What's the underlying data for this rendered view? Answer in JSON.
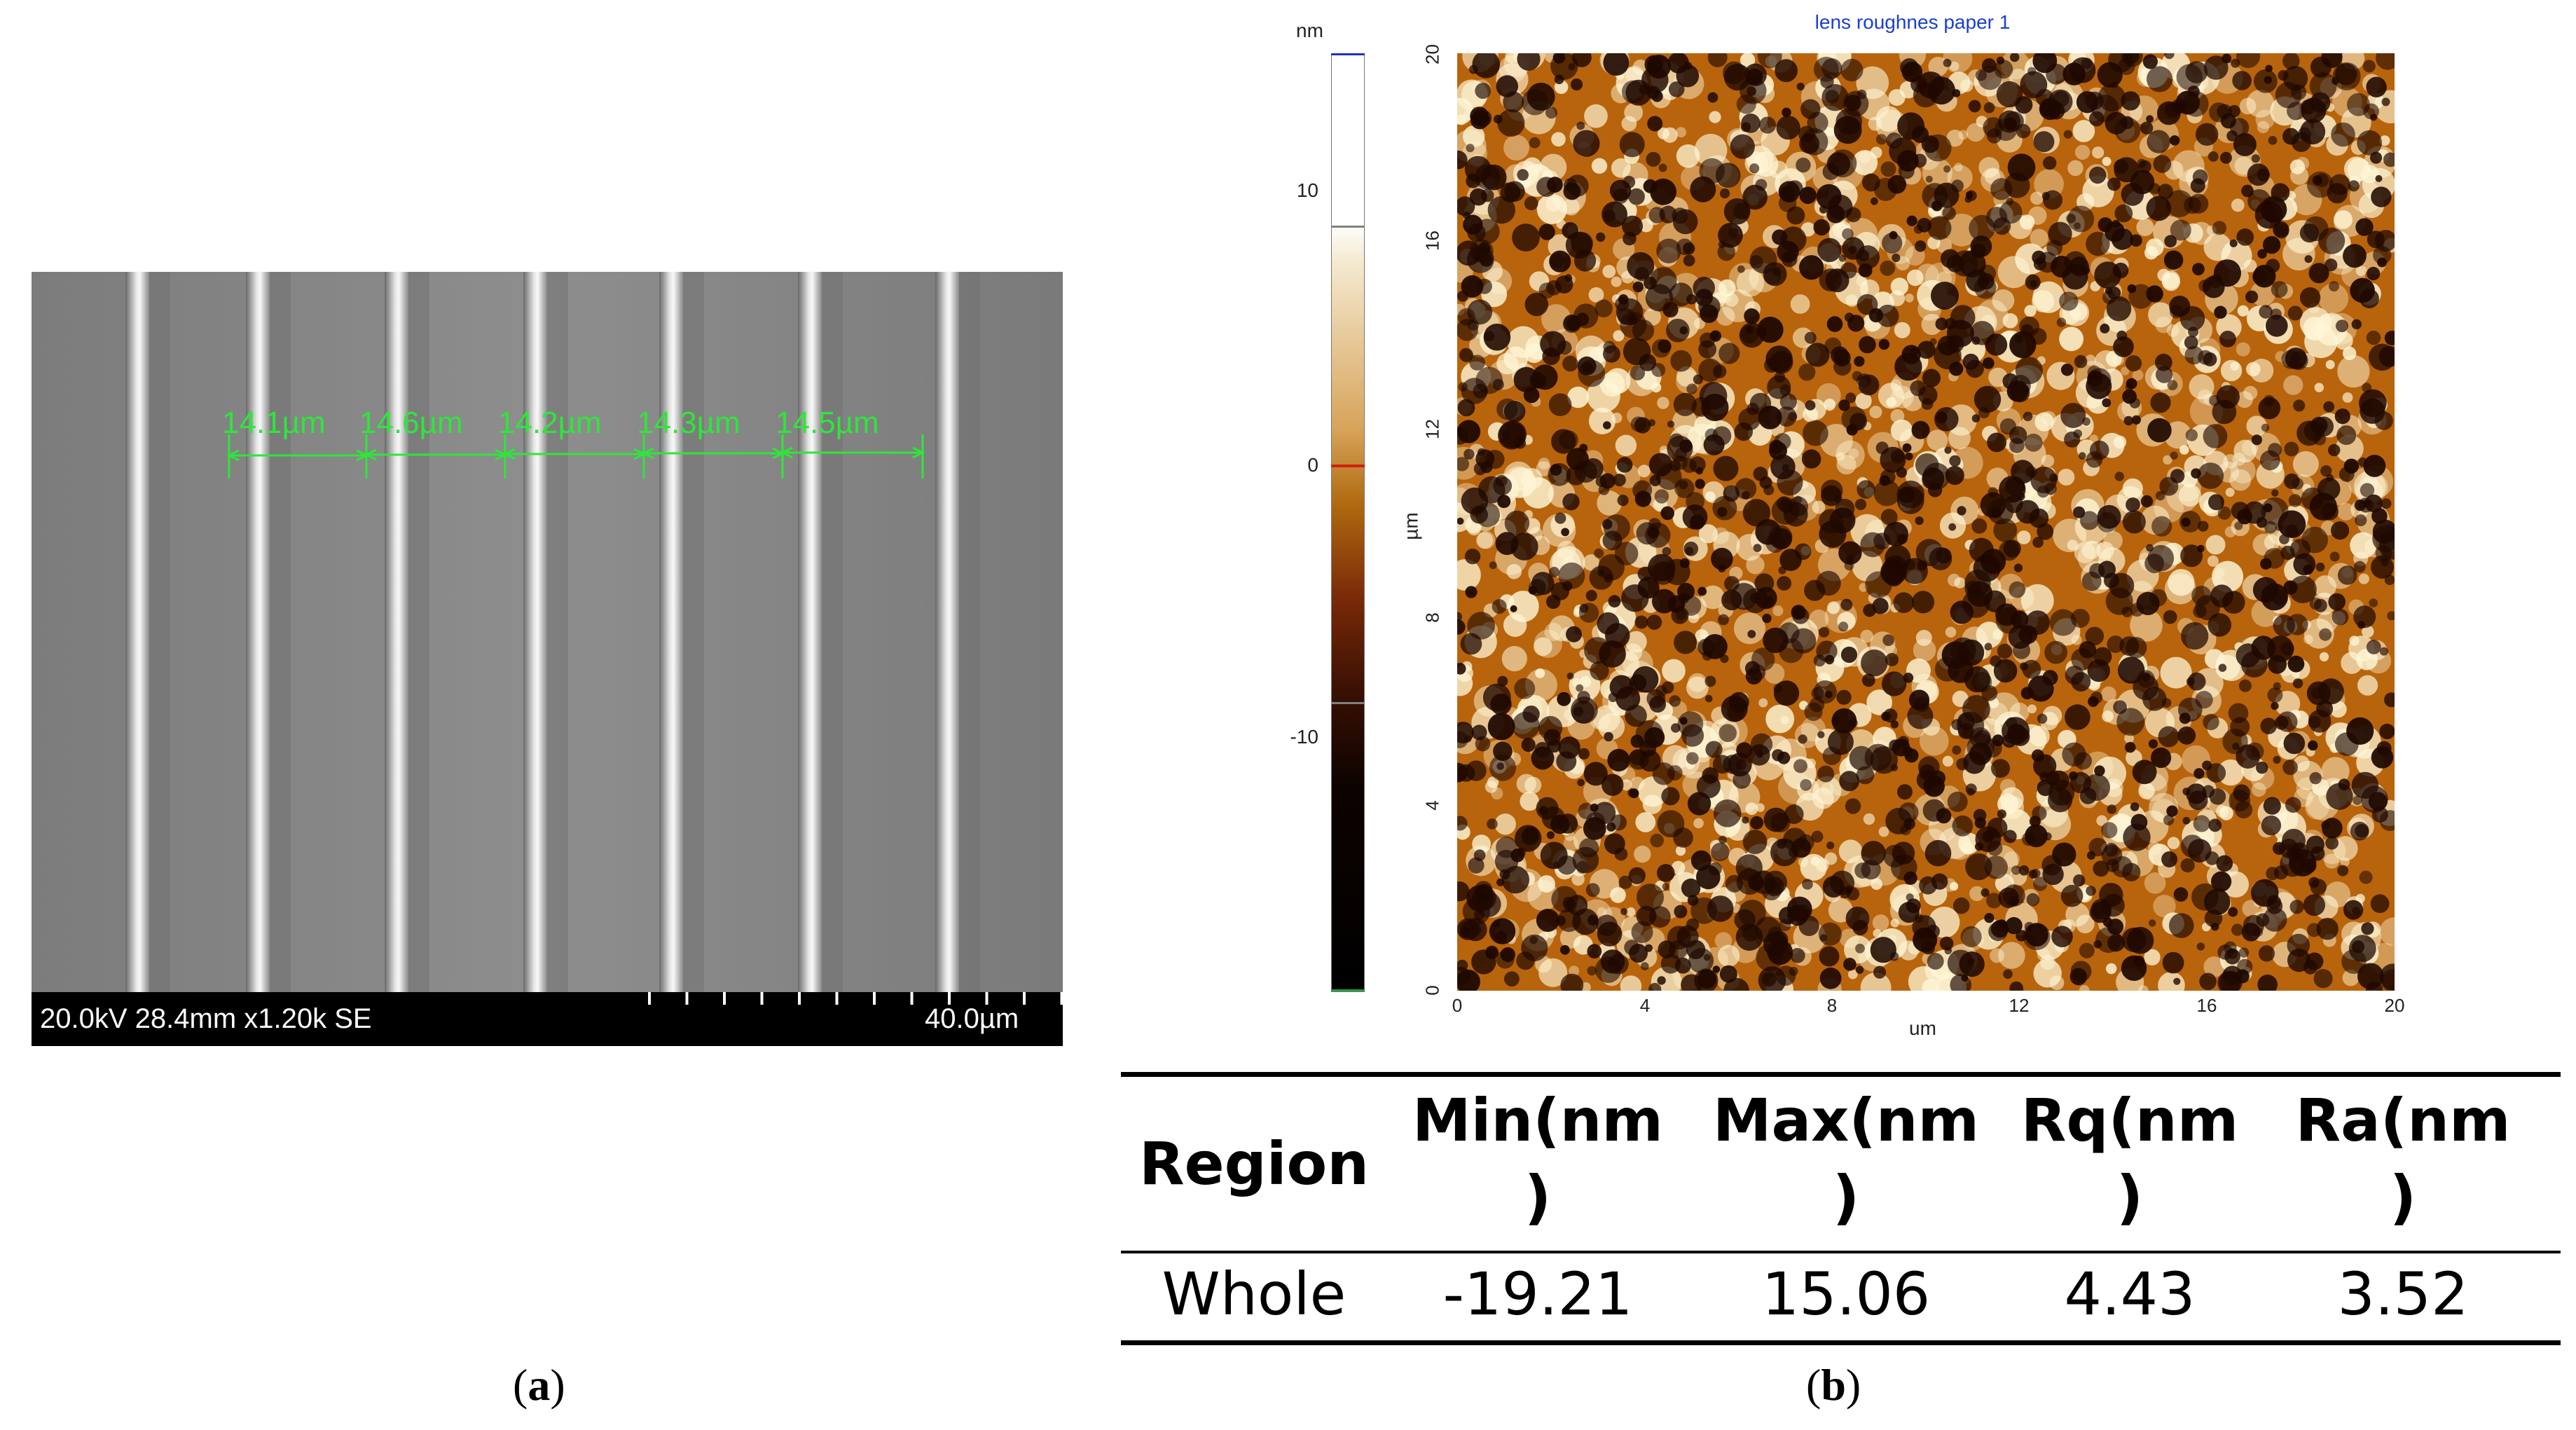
{
  "panel_a": {
    "caption_letter": "a",
    "measurements": [
      "14.1µm",
      "14.6µm",
      "14.2µm",
      "14.3µm",
      "14.5µm"
    ],
    "info_bar": {
      "left_text": "20.0kV 28.4mm x1.20k SE",
      "scale_text": "40.0µm"
    }
  },
  "panel_b": {
    "caption_letter": "b",
    "afm": {
      "title": "lens roughnes paper 1",
      "colorbar_unit": "nm",
      "colorbar_ticks": [
        "10",
        "0",
        "-10"
      ],
      "y_label": "µm",
      "x_label": "um",
      "y_ticks": [
        "20",
        "16",
        "12",
        "8",
        "4",
        "0"
      ],
      "x_ticks": [
        "0",
        "4",
        "8",
        "12",
        "16",
        "20"
      ],
      "colors": {
        "light": "#fff6d6",
        "mid": "#b8640c",
        "dark": "#1e0800"
      }
    },
    "table": {
      "headers": {
        "region": "Region",
        "min": "Min(nm",
        "max": "Max(nm",
        "rq": "Rq(nm",
        "ra": "Ra(nm",
        "close": ")"
      },
      "rows": [
        {
          "region": "Whole",
          "min": "-19.21",
          "max": "15.06",
          "rq": "4.43",
          "ra": "3.52"
        }
      ]
    }
  }
}
